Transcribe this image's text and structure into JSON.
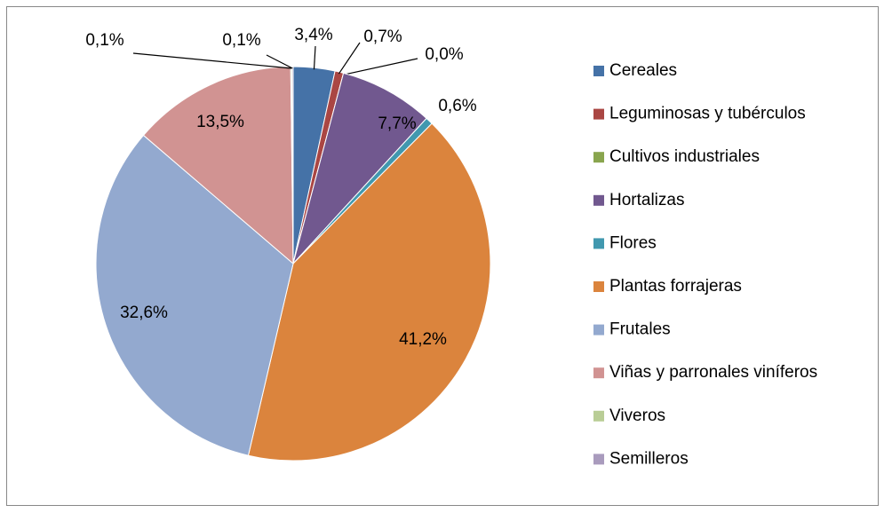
{
  "chart_data": {
    "type": "pie",
    "categories": [
      "Cereales",
      "Leguminosas y tubérculos",
      "Cultivos industriales",
      "Hortalizas",
      "Flores",
      "Plantas forrajeras",
      "Frutales",
      "Viñas y parronales viníferos",
      "Viveros",
      "Semilleros"
    ],
    "values": [
      3.4,
      0.7,
      0.0,
      7.7,
      0.6,
      41.2,
      32.6,
      13.5,
      0.1,
      0.1
    ],
    "value_labels": [
      "3,4%",
      "0,7%",
      "0,0%",
      "7,7%",
      "0,6%",
      "41,2%",
      "32,6%",
      "13,5%",
      "0,1%",
      "0,1%"
    ],
    "colors": [
      "#4572a7",
      "#aa4643",
      "#89a54e",
      "#71588f",
      "#4198af",
      "#db843d",
      "#93a9cf",
      "#d19392",
      "#b9cd96",
      "#a99bbd"
    ],
    "legend": "right"
  }
}
